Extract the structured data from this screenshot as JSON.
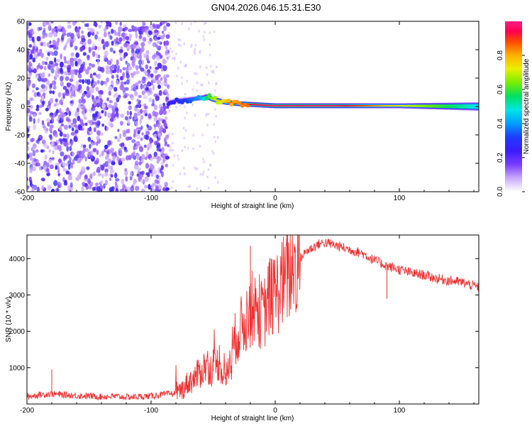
{
  "title": "GN04.2026.046.15.31.E30",
  "chart_data": [
    {
      "type": "heatmap",
      "xlabel": "Height of straight line (km)",
      "ylabel": "Frequency (Hz)",
      "xlim": [
        -200,
        164
      ],
      "ylim": [
        -60,
        60
      ],
      "x_ticks": [
        -200,
        -100,
        0,
        100
      ],
      "y_ticks": [
        60,
        40,
        20,
        0,
        -20,
        -40,
        -60
      ],
      "colorbar": {
        "label": "Normalized spectral amplitude",
        "range": [
          0,
          1
        ],
        "ticks": [
          "0.0",
          "0.2",
          "0.4",
          "0.6",
          "0.8"
        ],
        "colors": [
          "#ffffff",
          "#c9a8ff",
          "#7a3cff",
          "#3a1bff",
          "#1f3bff",
          "#009dff",
          "#00e5e5",
          "#00e060",
          "#77ee00",
          "#e8f000",
          "#ffb000",
          "#ff4a00",
          "#ff0050",
          "#ff2080"
        ]
      },
      "noise_band_x": [
        -200,
        -86
      ],
      "noise_band_y": [
        -60,
        60
      ],
      "ridge": {
        "x": [
          -86,
          -80,
          -70,
          -60,
          -55,
          -50,
          -45,
          -40,
          -30,
          -20,
          -10,
          0,
          10,
          50,
          100,
          164
        ],
        "freq": [
          3,
          4,
          5,
          6,
          7,
          5,
          4,
          3,
          2,
          1.5,
          1,
          0.5,
          0.5,
          0.5,
          0.5,
          0
        ],
        "amplitude": [
          0.25,
          0.3,
          0.35,
          0.45,
          0.6,
          0.7,
          0.75,
          0.82,
          0.88,
          0.92,
          0.95,
          0.97,
          0.97,
          0.96,
          0.7,
          0.45
        ]
      }
    },
    {
      "type": "line",
      "xlabel": "Height of straight line (km)",
      "ylabel": "SNR (10 * v/v)",
      "xlim": [
        -200,
        164
      ],
      "ylim": [
        0,
        4650
      ],
      "x_ticks": [
        -200,
        -100,
        0,
        100
      ],
      "y_ticks": [
        1000,
        2000,
        3000,
        4000
      ],
      "line_color": "#f03030",
      "series": [
        {
          "name": "SNR",
          "x": [
            -200,
            -190,
            -180,
            -170,
            -160,
            -150,
            -140,
            -130,
            -120,
            -110,
            -100,
            -90,
            -80,
            -75,
            -70,
            -65,
            -60,
            -55,
            -50,
            -45,
            -40,
            -35,
            -30,
            -25,
            -20,
            -15,
            -10,
            -5,
            0,
            5,
            10,
            15,
            20,
            25,
            30,
            35,
            40,
            45,
            50,
            60,
            70,
            80,
            90,
            100,
            110,
            120,
            130,
            140,
            150,
            160,
            164
          ],
          "y": [
            200,
            250,
            280,
            250,
            230,
            220,
            200,
            210,
            190,
            200,
            220,
            260,
            300,
            400,
            600,
            700,
            900,
            1100,
            900,
            1200,
            600,
            1500,
            2000,
            2200,
            2600,
            2700,
            2400,
            2900,
            3000,
            3300,
            3500,
            3800,
            4000,
            4200,
            4300,
            4400,
            4450,
            4400,
            4350,
            4250,
            4150,
            3950,
            3800,
            3700,
            3600,
            3550,
            3450,
            3400,
            3350,
            3250,
            3200
          ]
        }
      ]
    }
  ]
}
